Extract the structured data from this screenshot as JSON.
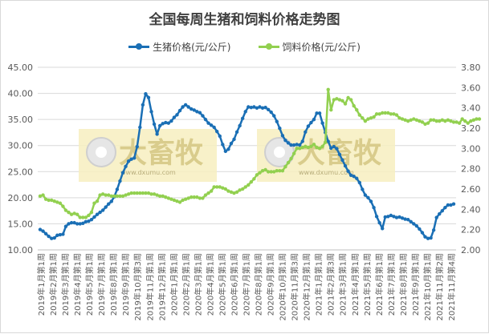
{
  "chart_data": {
    "type": "line",
    "title": "全国每周生猪和饲料价格走势图",
    "series": [
      {
        "name": "生猪价格(元/公斤)",
        "axis": "left",
        "color": "#1a6fb5",
        "values": [
          13.9,
          13.6,
          13.1,
          12.6,
          12.2,
          12.3,
          12.8,
          12.9,
          13.0,
          14.5,
          15.0,
          15.2,
          15.2,
          15.0,
          15.0,
          15.1,
          15.4,
          15.5,
          15.8,
          16.3,
          16.8,
          17.2,
          17.6,
          18.2,
          18.8,
          19.3,
          20.2,
          21.6,
          23.2,
          24.8,
          26.0,
          27.0,
          27.4,
          27.6,
          29.8,
          33.5,
          37.8,
          39.9,
          39.2,
          36.5,
          34.1,
          32.2,
          33.8,
          34.2,
          34.4,
          34.3,
          34.7,
          35.4,
          35.9,
          36.7,
          37.4,
          37.8,
          37.4,
          37.0,
          36.8,
          36.5,
          36.3,
          35.7,
          35.0,
          34.3,
          33.9,
          33.5,
          32.7,
          31.8,
          30.2,
          28.9,
          29.3,
          30.4,
          31.2,
          32.6,
          33.8,
          35.2,
          36.5,
          37.4,
          37.3,
          37.4,
          37.2,
          37.4,
          37.2,
          37.3,
          36.9,
          36.4,
          35.7,
          34.6,
          33.3,
          31.9,
          31.0,
          30.5,
          30.1,
          30.1,
          30.2,
          30.1,
          30.8,
          32.6,
          33.7,
          34.4,
          35.0,
          36.2,
          36.2,
          34.3,
          32.5,
          30.8,
          29.5,
          29.8,
          29.4,
          28.3,
          27.2,
          26.1,
          25.1,
          24.3,
          24.1,
          23.7,
          22.9,
          21.6,
          20.5,
          20.0,
          19.3,
          18.1,
          16.4,
          15.2,
          14.1,
          16.3,
          16.4,
          16.6,
          16.4,
          16.2,
          16.3,
          16.1,
          15.9,
          15.8,
          15.4,
          15.0,
          14.6,
          14.0,
          13.3,
          12.5,
          12.2,
          12.3,
          13.8,
          16.2,
          16.9,
          17.5,
          18.1,
          18.6,
          18.6,
          18.8
        ]
      },
      {
        "name": "饲料价格(元/公斤)",
        "axis": "right",
        "color": "#92d050",
        "values": [
          2.53,
          2.54,
          2.5,
          2.49,
          2.49,
          2.48,
          2.47,
          2.46,
          2.43,
          2.39,
          2.37,
          2.35,
          2.36,
          2.35,
          2.32,
          2.32,
          2.32,
          2.34,
          2.37,
          2.46,
          2.48,
          2.54,
          2.55,
          2.54,
          2.54,
          2.53,
          2.53,
          2.53,
          2.53,
          2.53,
          2.54,
          2.55,
          2.56,
          2.56,
          2.56,
          2.56,
          2.56,
          2.56,
          2.56,
          2.55,
          2.55,
          2.54,
          2.53,
          2.53,
          2.52,
          2.51,
          2.5,
          2.49,
          2.48,
          2.47,
          2.49,
          2.5,
          2.51,
          2.52,
          2.52,
          2.52,
          2.51,
          2.51,
          2.54,
          2.56,
          2.58,
          2.62,
          2.62,
          2.62,
          2.61,
          2.6,
          2.58,
          2.57,
          2.56,
          2.57,
          2.59,
          2.6,
          2.62,
          2.64,
          2.67,
          2.7,
          2.74,
          2.76,
          2.78,
          2.79,
          2.77,
          2.77,
          2.77,
          2.78,
          2.78,
          2.78,
          2.82,
          2.86,
          2.9,
          2.95,
          3.0,
          3.0,
          3.01,
          3.02,
          3.01,
          3.02,
          3.04,
          3.01,
          3.0,
          3.02,
          3.06,
          3.58,
          3.38,
          3.48,
          3.49,
          3.48,
          3.47,
          3.44,
          3.5,
          3.48,
          3.42,
          3.38,
          3.33,
          3.3,
          3.27,
          3.29,
          3.3,
          3.31,
          3.34,
          3.34,
          3.35,
          3.35,
          3.35,
          3.34,
          3.34,
          3.33,
          3.3,
          3.29,
          3.28,
          3.27,
          3.28,
          3.29,
          3.28,
          3.27,
          3.26,
          3.24,
          3.25,
          3.28,
          3.28,
          3.27,
          3.27,
          3.28,
          3.27,
          3.28,
          3.27,
          3.26,
          3.26,
          3.25,
          3.29,
          3.27,
          3.25,
          3.27,
          3.28,
          3.29,
          3.29
        ]
      }
    ],
    "y_left": {
      "min": 10,
      "max": 45,
      "step": 5,
      "ticks": [
        "10.00",
        "15.00",
        "20.00",
        "25.00",
        "30.00",
        "35.00",
        "40.00",
        "45.00"
      ]
    },
    "y_right": {
      "min": 2.0,
      "max": 3.8,
      "step": 0.2,
      "ticks": [
        "2.00",
        "2.20",
        "2.40",
        "2.60",
        "2.80",
        "3.00",
        "3.20",
        "3.40",
        "3.60",
        "3.80"
      ]
    },
    "x_tick_labels": [
      "2019年1月第1周",
      "2019年2月第1周",
      "2019年3月第1周",
      "2019年4月第1周",
      "2019年5月第1周",
      "2019年7月第1周",
      "2019年8月第1周",
      "2019年9月第1周",
      "2019年10月第3周",
      "2019年11月第1周",
      "2019年12月第1周",
      "2020年1月第1周",
      "2020年2月第1周",
      "2020年3月第1周",
      "2020年4月第1周",
      "2020年5月第1周",
      "2020年6月第1周",
      "2020年7月第1周",
      "2020年8月第1周",
      "2020年9月第1周",
      "2020年10月第1周",
      "2020年11月第3周",
      "2020年12月第1周",
      "2021年1月第1周",
      "2021年2月第3周",
      "2021年3月第1周",
      "2021年4月第1周",
      "2021年5月第1周",
      "2021年6月第1周",
      "2021年7月第1周",
      "2021年8月第1周",
      "2021年9月第1周",
      "2021年10月第1周",
      "2021年11月第2周",
      "2021年11月第4周"
    ],
    "legend_position": "top",
    "grid": true
  },
  "watermark": {
    "brand": "大畜牧",
    "url": "www.dxumu.com"
  }
}
